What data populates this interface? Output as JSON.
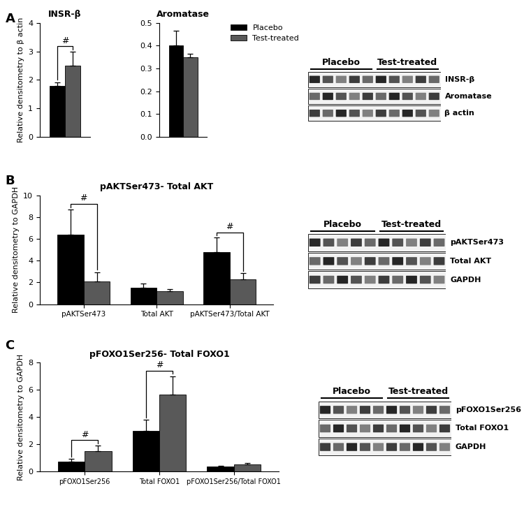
{
  "chart_data": [
    {
      "type": "bar",
      "title": "INSR-β",
      "y_label": "Relative densitometry to β actin",
      "categories": [
        null
      ],
      "series": [
        {
          "name": "Placebo",
          "color": "#000000",
          "values": [
            1.8
          ],
          "errors": [
            0.12
          ]
        },
        {
          "name": "Test-treated",
          "color": "#595959",
          "values": [
            2.5
          ],
          "errors": [
            0.48
          ]
        }
      ],
      "ylim": [
        0,
        4
      ],
      "yticks": [
        0,
        1,
        2,
        3,
        4
      ],
      "annotations": [
        {
          "at": 0,
          "text": "#"
        }
      ]
    },
    {
      "type": "bar",
      "title": "Aromatase",
      "y_label": "",
      "categories": [
        null
      ],
      "series": [
        {
          "name": "Placebo",
          "color": "#000000",
          "values": [
            0.4
          ],
          "errors": [
            0.065
          ]
        },
        {
          "name": "Test-treated",
          "color": "#595959",
          "values": [
            0.35
          ],
          "errors": [
            0.015
          ]
        }
      ],
      "ylim": [
        0,
        0.5
      ],
      "yticks": [
        {
          "value": 0,
          "label": "0.0"
        },
        0.1,
        0.2,
        0.3,
        0.4,
        0.5
      ],
      "legend": "upper left",
      "annotations": []
    },
    {
      "type": "bar",
      "title": "pAKTSer473- Total AKT",
      "y_label": "Relative densitometry to GAPDH",
      "categories": [
        "pAKTSer473",
        "Total AKT",
        "pAKTSer473/Total AKT"
      ],
      "series": [
        {
          "name": "Placebo",
          "color": "#000000",
          "values": [
            6.4,
            1.5,
            4.8
          ],
          "errors": [
            2.3,
            0.4,
            1.3
          ]
        },
        {
          "name": "Test-treated",
          "color": "#595959",
          "values": [
            2.1,
            1.2,
            2.3
          ],
          "errors": [
            0.85,
            0.2,
            0.55
          ]
        }
      ],
      "ylim": [
        0,
        10
      ],
      "yticks": [
        0,
        2,
        4,
        6,
        8,
        10
      ],
      "annotations": [
        {
          "at": 0,
          "text": "#"
        },
        {
          "at": 2,
          "text": "#"
        }
      ]
    },
    {
      "type": "bar",
      "title": "pFOXO1Ser256- Total FOXO1",
      "y_label": "Relative densitometry to GAPDH",
      "categories": [
        "pFOXO1Ser256",
        "Total FOXO1",
        "pFOXO1Ser256/Total FOXO1"
      ],
      "series": [
        {
          "name": "Placebo",
          "color": "#000000",
          "values": [
            0.75,
            3.0,
            0.35
          ],
          "errors": [
            0.2,
            0.8,
            0.08
          ]
        },
        {
          "name": "Test-treated",
          "color": "#595959",
          "values": [
            1.5,
            5.65,
            0.5
          ],
          "errors": [
            0.4,
            1.35,
            0.12
          ]
        }
      ],
      "ylim": [
        0,
        8
      ],
      "yticks": [
        0,
        2,
        4,
        6,
        8
      ],
      "annotations": [
        {
          "at": 0,
          "text": "#"
        },
        {
          "at": 1,
          "text": "#"
        }
      ]
    }
  ],
  "blots": [
    {
      "panel": "A",
      "groups": [
        "Placebo",
        "Test-treated"
      ],
      "bands": [
        "INSR-β",
        "Aromatase",
        "β actin"
      ]
    },
    {
      "panel": "B",
      "groups": [
        "Placebo",
        "Test-treated"
      ],
      "bands": [
        "pAKTSer473",
        "Total AKT",
        "GAPDH"
      ]
    },
    {
      "panel": "C",
      "groups": [
        "Placebo",
        "Test-treated"
      ],
      "bands": [
        "pFOXO1Ser256",
        "Total FOXO1",
        "GAPDH"
      ]
    }
  ]
}
